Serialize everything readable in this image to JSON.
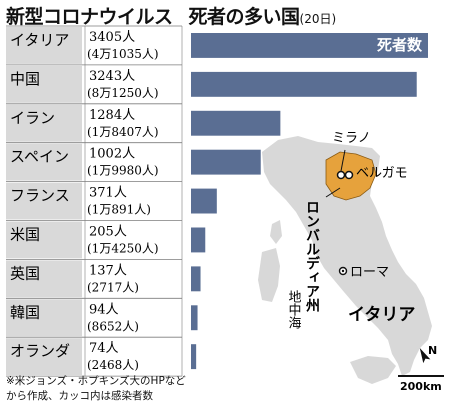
{
  "header": {
    "title_main": "新型コロナウイルス",
    "title_sub": "死者の多い国",
    "date_note": "(20日)"
  },
  "colors": {
    "bar": "#5a6e93",
    "label_bg": "#d9d9d9",
    "grid_line": "#7d7d7d",
    "map_land": "#d8d8d8",
    "lombardy": "#e6a23c",
    "dots": "#111111"
  },
  "chart_data": {
    "type": "bar",
    "orientation": "horizontal",
    "legend_label": "死者数",
    "xlim": [
      0,
      3405
    ],
    "categories": [
      "イタリア",
      "中国",
      "イラン",
      "スペイン",
      "フランス",
      "米国",
      "英国",
      "韓国",
      "オランダ"
    ],
    "series": [
      {
        "name": "死者数",
        "values": [
          3405,
          3243,
          1284,
          1002,
          371,
          205,
          137,
          94,
          74
        ]
      }
    ],
    "death_labels": [
      "3405人",
      "3243人",
      "1284人",
      "1002人",
      "371人",
      "205人",
      "137人",
      "94人",
      "74人"
    ],
    "infection_labels": [
      "(4万1035人)",
      "(8万1250人)",
      "(1万8407人)",
      "(1万9980人)",
      "(1万891人)",
      "(1万4250人)",
      "(2717人)",
      "(8652人)",
      "(2468人)"
    ]
  },
  "map": {
    "milan": "ミラノ",
    "bergamo": "ベルガモ",
    "lombardy": "ロンバルディア州",
    "rome": "ローマ",
    "mediterranean": "地中海",
    "italy": "イタリア",
    "north": "N",
    "scale": "200km"
  },
  "footnote": {
    "line1": "※米ジョンズ・ホプキンズ大のHPなど",
    "line2": "から作成、カッコ内は感染者数"
  }
}
